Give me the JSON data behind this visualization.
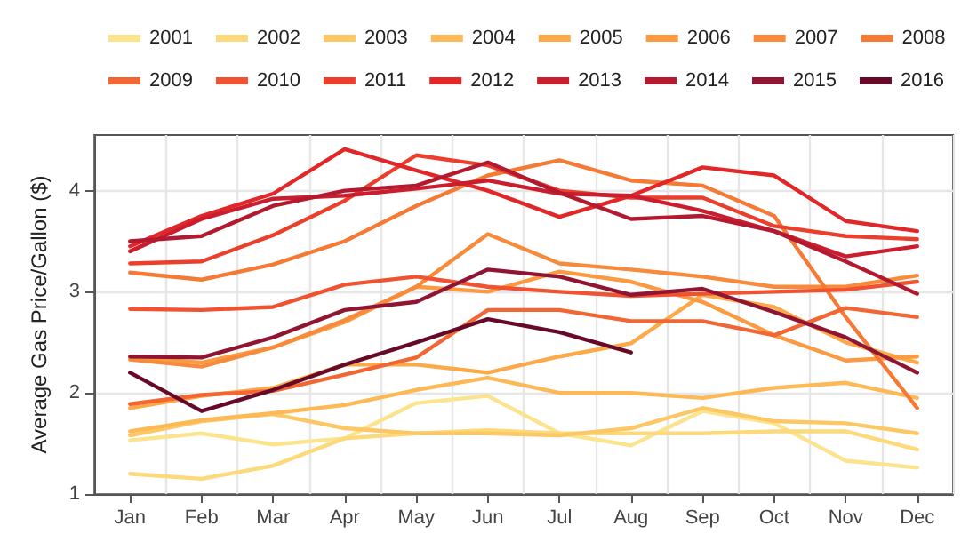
{
  "chart_data": {
    "type": "line",
    "ylabel": "Average Gas Price/Gallon ($)",
    "categories": [
      "Jan",
      "Feb",
      "Mar",
      "Apr",
      "May",
      "Jun",
      "Jul",
      "Aug",
      "Sep",
      "Oct",
      "Nov",
      "Dec"
    ],
    "series": [
      {
        "name": "2001",
        "color": "#fce48f",
        "values": [
          1.53,
          1.6,
          1.49,
          1.55,
          1.9,
          1.97,
          1.6,
          1.48,
          1.82,
          1.7,
          1.33,
          1.26
        ]
      },
      {
        "name": "2002",
        "color": "#fcd97a",
        "values": [
          1.2,
          1.15,
          1.28,
          1.55,
          1.6,
          1.63,
          1.6,
          1.6,
          1.6,
          1.62,
          1.62,
          1.44
        ]
      },
      {
        "name": "2003",
        "color": "#fcc865",
        "values": [
          1.58,
          1.72,
          1.79,
          1.65,
          1.6,
          1.6,
          1.58,
          1.65,
          1.85,
          1.72,
          1.7,
          1.6
        ]
      },
      {
        "name": "2004",
        "color": "#fdb956",
        "values": [
          1.62,
          1.73,
          1.8,
          1.88,
          2.03,
          2.15,
          2.0,
          2.0,
          1.95,
          2.05,
          2.1,
          1.95
        ]
      },
      {
        "name": "2005",
        "color": "#fca94a",
        "values": [
          1.85,
          1.97,
          2.05,
          2.28,
          2.28,
          2.2,
          2.36,
          2.49,
          2.97,
          2.85,
          2.5,
          2.3
        ]
      },
      {
        "name": "2006",
        "color": "#fb9a41",
        "values": [
          2.35,
          2.3,
          2.45,
          2.7,
          3.05,
          3.0,
          3.2,
          3.1,
          2.9,
          2.57,
          2.32,
          2.36
        ]
      },
      {
        "name": "2007",
        "color": "#f88b3b",
        "values": [
          2.33,
          2.26,
          2.45,
          2.72,
          3.05,
          3.57,
          3.28,
          3.22,
          3.15,
          3.05,
          3.05,
          3.16
        ]
      },
      {
        "name": "2008",
        "color": "#f57a36",
        "values": [
          3.19,
          3.12,
          3.27,
          3.5,
          3.85,
          4.15,
          4.3,
          4.1,
          4.05,
          3.75,
          2.75,
          1.85
        ]
      },
      {
        "name": "2009",
        "color": "#f26633",
        "values": [
          1.89,
          1.98,
          2.02,
          2.18,
          2.35,
          2.82,
          2.82,
          2.71,
          2.71,
          2.57,
          2.84,
          2.75
        ]
      },
      {
        "name": "2010",
        "color": "#ef5331",
        "values": [
          2.83,
          2.82,
          2.85,
          3.07,
          3.15,
          3.05,
          3.0,
          2.96,
          2.98,
          3.0,
          3.02,
          3.1
        ]
      },
      {
        "name": "2011",
        "color": "#eb3f2c",
        "values": [
          3.28,
          3.3,
          3.56,
          3.9,
          4.35,
          4.25,
          4.0,
          3.93,
          3.93,
          3.65,
          3.55,
          3.52
        ]
      },
      {
        "name": "2012",
        "color": "#e22729",
        "values": [
          3.45,
          3.75,
          3.97,
          4.41,
          4.2,
          4.0,
          3.74,
          3.95,
          4.23,
          4.15,
          3.7,
          3.6
        ]
      },
      {
        "name": "2013",
        "color": "#ca1d2e",
        "values": [
          3.4,
          3.72,
          3.92,
          3.95,
          4.02,
          4.1,
          3.97,
          3.95,
          3.8,
          3.6,
          3.35,
          3.45
        ]
      },
      {
        "name": "2014",
        "color": "#b31a30",
        "values": [
          3.5,
          3.55,
          3.85,
          4.0,
          4.05,
          4.28,
          3.98,
          3.72,
          3.75,
          3.6,
          3.3,
          2.98
        ]
      },
      {
        "name": "2015",
        "color": "#8f1532",
        "values": [
          2.36,
          2.35,
          2.55,
          2.82,
          2.9,
          3.22,
          3.15,
          2.97,
          3.03,
          2.8,
          2.55,
          2.2
        ]
      },
      {
        "name": "2016",
        "color": "#670a28",
        "values": [
          2.2,
          1.82,
          2.03,
          2.28,
          2.5,
          2.73,
          2.6,
          2.4,
          null,
          null,
          null,
          null
        ]
      }
    ],
    "ylim": [
      1,
      4.55
    ],
    "yticks": [
      1,
      2,
      3,
      4
    ],
    "grid": true,
    "legend": "top",
    "marker": "none",
    "line_style": "solid"
  }
}
